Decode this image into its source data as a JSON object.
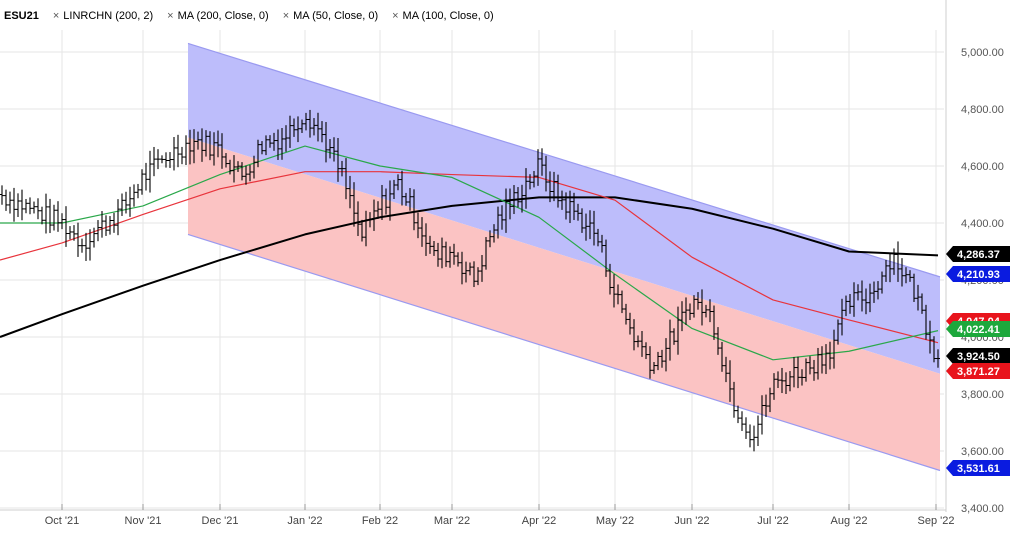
{
  "legend": {
    "symbol": "ESU21",
    "items": [
      {
        "label": "LINRCHN (200, 2)",
        "icon": "close-icon"
      },
      {
        "label": "MA (200, Close, 0)",
        "icon": "close-icon"
      },
      {
        "label": "MA (50, Close, 0)",
        "icon": "close-icon"
      },
      {
        "label": "MA (100, Close, 0)",
        "icon": "close-icon"
      }
    ],
    "close_glyph": "×"
  },
  "chart_data": {
    "type": "ohlc",
    "title": "",
    "xlabel": "",
    "ylabel": "",
    "ylim": [
      3400,
      5100
    ],
    "grid": true,
    "x_ticks": [
      "Oct '21",
      "Nov '21",
      "Dec '21",
      "Jan '22",
      "Feb '22",
      "Mar '22",
      "Apr '22",
      "May '22",
      "Jun '22",
      "Jul '22",
      "Aug '22",
      "Sep '22"
    ],
    "y_ticks": [
      "3,400.00",
      "3,600.00",
      "3,800.00",
      "4,000.00",
      "4,200.00",
      "4,400.00",
      "4,600.00",
      "4,800.00",
      "5,000.00"
    ],
    "colors": {
      "price_bars": "#000000",
      "channel_upper_fill": "#bdbdfb",
      "channel_lower_fill": "#fbc3c3",
      "channel_border": "#9a9af0",
      "ma200": "#000000",
      "ma100": "#e8343c",
      "ma50": "#2aa84a"
    },
    "price_path": [
      [
        "Sep '21",
        4500
      ],
      [
        "Oct '21",
        4400
      ],
      [
        "Oct '21",
        4330
      ],
      [
        "Oct '21",
        4390
      ],
      [
        "Oct '21",
        4450
      ],
      [
        "Nov '21",
        4560
      ],
      [
        "Nov '21",
        4640
      ],
      [
        "Nov '21",
        4690
      ],
      [
        "Dec '21",
        4660
      ],
      [
        "Dec '21",
        4560
      ],
      [
        "Dec '21",
        4680
      ],
      [
        "Dec '21",
        4700
      ],
      [
        "Jan '22",
        4790
      ],
      [
        "Jan '22",
        4700
      ],
      [
        "Jan '22",
        4560
      ],
      [
        "Jan '22",
        4350
      ],
      [
        "Feb '22",
        4460
      ],
      [
        "Feb '22",
        4540
      ],
      [
        "Feb '22",
        4420
      ],
      [
        "Feb '22",
        4280
      ],
      [
        "Mar '22",
        4300
      ],
      [
        "Mar '22",
        4200
      ],
      [
        "Mar '22",
        4400
      ],
      [
        "Mar '22",
        4500
      ],
      [
        "Apr '22",
        4600
      ],
      [
        "Apr '22",
        4490
      ],
      [
        "Apr '22",
        4430
      ],
      [
        "Apr '22",
        4360
      ],
      [
        "May '22",
        4150
      ],
      [
        "May '22",
        4000
      ],
      [
        "May '22",
        3900
      ],
      [
        "May '22",
        4000
      ],
      [
        "Jun '22",
        4130
      ],
      [
        "Jun '22",
        4070
      ],
      [
        "Jun '22",
        3780
      ],
      [
        "Jun '22",
        3650
      ],
      [
        "Jul '22",
        3830
      ],
      [
        "Jul '22",
        3870
      ],
      [
        "Jul '22",
        3900
      ],
      [
        "Jul '22",
        3960
      ],
      [
        "Aug '22",
        4120
      ],
      [
        "Aug '22",
        4150
      ],
      [
        "Aug '22",
        4290
      ],
      [
        "Aug '22",
        4160
      ],
      [
        "Sep '22",
        3924.5
      ]
    ],
    "series": [
      {
        "name": "LINRCHN (200, 2)",
        "kind": "channel",
        "start": "Nov '21",
        "end": "Sep '22",
        "upper": [
          5030,
          4210.93
        ],
        "mid": [
          4700,
          3871.27
        ],
        "lower": [
          4360,
          3531.61
        ]
      },
      {
        "name": "MA (200, Close, 0)",
        "color": "#000000",
        "points": [
          [
            "Sep '21",
            4000
          ],
          [
            "Oct '21",
            4080
          ],
          [
            "Nov '21",
            4180
          ],
          [
            "Dec '21",
            4270
          ],
          [
            "Jan '22",
            4360
          ],
          [
            "Feb '22",
            4420
          ],
          [
            "Mar '22",
            4460
          ],
          [
            "Apr '22",
            4490
          ],
          [
            "May '22",
            4490
          ],
          [
            "Jun '22",
            4450
          ],
          [
            "Jul '22",
            4380
          ],
          [
            "Aug '22",
            4300
          ],
          [
            "Sep '22",
            4286.37
          ]
        ]
      },
      {
        "name": "MA (100, Close, 0)",
        "color": "#e8343c",
        "points": [
          [
            "Sep '21",
            4270
          ],
          [
            "Oct '21",
            4330
          ],
          [
            "Nov '21",
            4430
          ],
          [
            "Dec '21",
            4520
          ],
          [
            "Jan '22",
            4580
          ],
          [
            "Feb '22",
            4580
          ],
          [
            "Mar '22",
            4570
          ],
          [
            "Apr '22",
            4560
          ],
          [
            "May '22",
            4480
          ],
          [
            "Jun '22",
            4280
          ],
          [
            "Jul '22",
            4130
          ],
          [
            "Aug '22",
            4060
          ],
          [
            "Sep '22",
            3980
          ]
        ]
      },
      {
        "name": "MA (50, Close, 0)",
        "color": "#2aa84a",
        "points": [
          [
            "Sep '21",
            4400
          ],
          [
            "Oct '21",
            4400
          ],
          [
            "Nov '21",
            4460
          ],
          [
            "Dec '21",
            4570
          ],
          [
            "Jan '22",
            4670
          ],
          [
            "Feb '22",
            4600
          ],
          [
            "Mar '22",
            4560
          ],
          [
            "Apr '22",
            4420
          ],
          [
            "May '22",
            4220
          ],
          [
            "Jun '22",
            4030
          ],
          [
            "Jul '22",
            3920
          ],
          [
            "Aug '22",
            3950
          ],
          [
            "Sep '22",
            4022.41
          ]
        ]
      }
    ],
    "price_labels": [
      {
        "text": "4,286.37",
        "value": 4286.37,
        "bg": "#000000",
        "fg": "#ffffff"
      },
      {
        "text": "4,210.93",
        "value": 4210.93,
        "bg": "#0a1be0",
        "fg": "#ffffff"
      },
      {
        "text": "4,047.04",
        "value": 4047.04,
        "bg": "#e8141c",
        "fg": "#ffffff"
      },
      {
        "text": "4,022.41",
        "value": 4022.41,
        "bg": "#1da83c",
        "fg": "#ffffff"
      },
      {
        "text": "3,924.50",
        "value": 3924.5,
        "bg": "#000000",
        "fg": "#ffffff"
      },
      {
        "text": "3,871.27",
        "value": 3871.27,
        "bg": "#e8141c",
        "fg": "#ffffff"
      },
      {
        "text": "3,531.61",
        "value": 3531.61,
        "bg": "#0a1be0",
        "fg": "#ffffff"
      }
    ]
  }
}
